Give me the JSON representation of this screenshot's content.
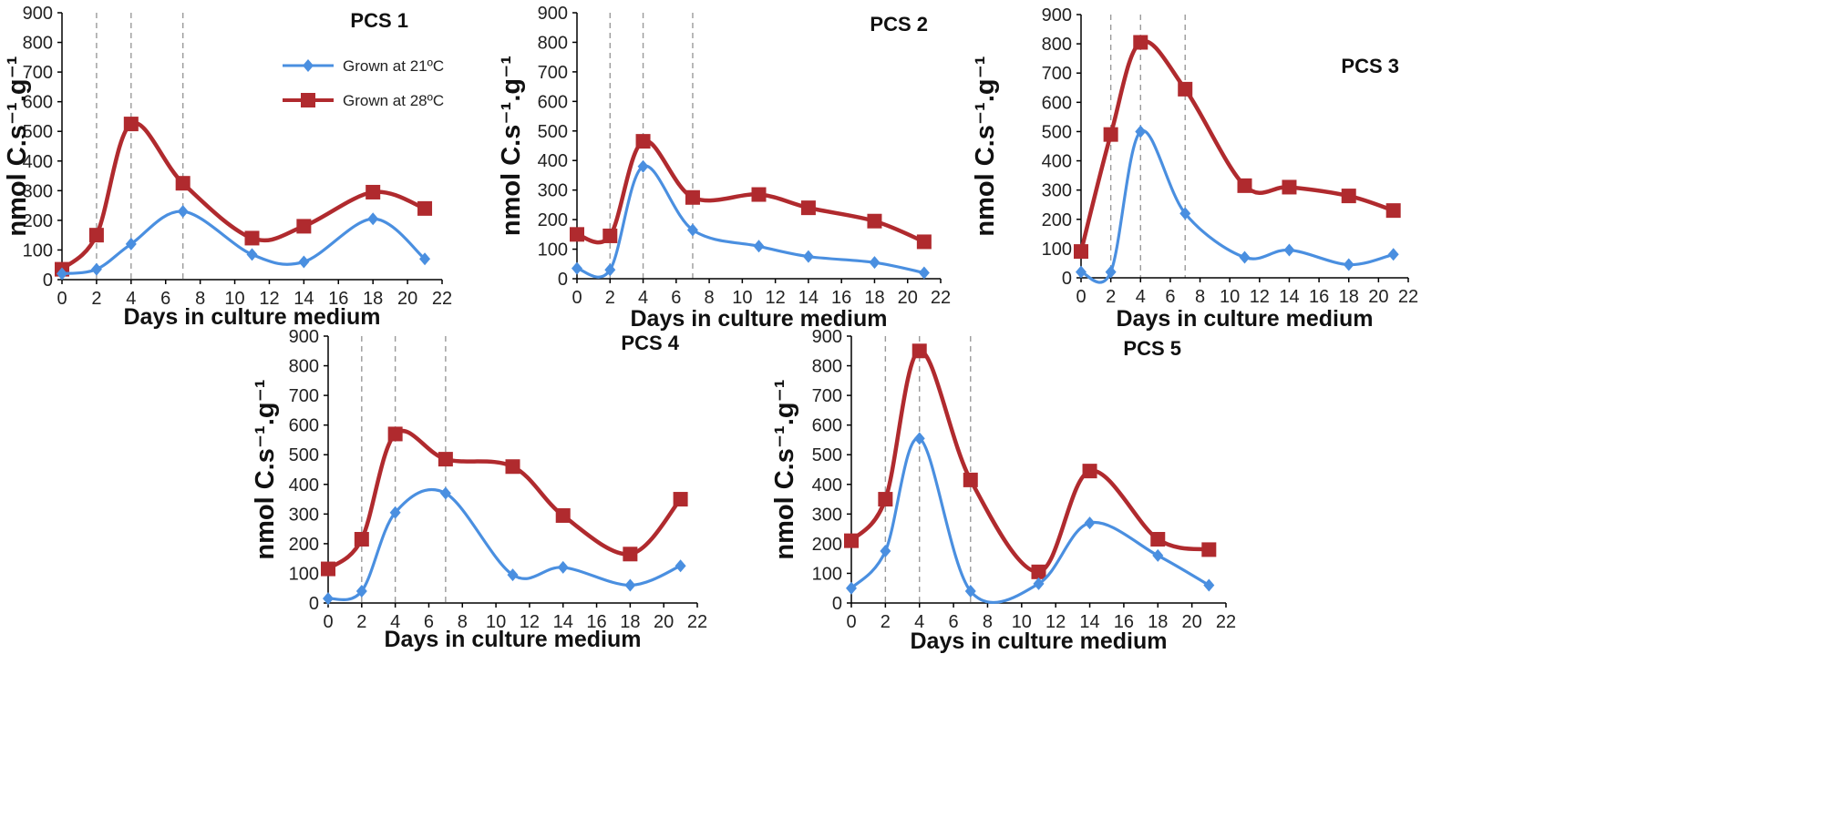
{
  "figure": {
    "colors": {
      "series_21": "#4a8fe0",
      "series_28": "#b02a2e"
    },
    "legend": {
      "entries": [
        "Grown at 21ºC",
        "Grown at 28ºC"
      ]
    }
  },
  "chart_data": [
    {
      "type": "line",
      "title": "PCS 1",
      "xlabel": "Days in culture medium",
      "ylabel": "nmol C.s⁻¹.g⁻¹",
      "xlim": [
        0,
        22
      ],
      "ylim": [
        0,
        900
      ],
      "xticks": [
        0,
        2,
        4,
        6,
        8,
        10,
        12,
        14,
        16,
        18,
        20,
        22
      ],
      "yticks": [
        0,
        100,
        200,
        300,
        400,
        500,
        600,
        700,
        800,
        900
      ],
      "reference_days": [
        2,
        4,
        7
      ],
      "x": [
        0,
        2,
        4,
        7,
        11,
        14,
        18,
        21
      ],
      "series": [
        {
          "name": "Grown at 21ºC",
          "values": [
            20,
            35,
            120,
            230,
            85,
            60,
            205,
            70
          ]
        },
        {
          "name": "Grown at 28ºC",
          "values": [
            35,
            150,
            525,
            325,
            140,
            180,
            295,
            240
          ]
        }
      ]
    },
    {
      "type": "line",
      "title": "PCS 2",
      "xlabel": "Days in culture medium",
      "ylabel": "nmol C.s⁻¹.g⁻¹",
      "xlim": [
        0,
        22
      ],
      "ylim": [
        0,
        900
      ],
      "xticks": [
        0,
        2,
        4,
        6,
        8,
        10,
        12,
        14,
        16,
        18,
        20,
        22
      ],
      "yticks": [
        0,
        100,
        200,
        300,
        400,
        500,
        600,
        700,
        800,
        900
      ],
      "reference_days": [
        2,
        4,
        7
      ],
      "x": [
        0,
        2,
        4,
        7,
        11,
        14,
        18,
        21
      ],
      "series": [
        {
          "name": "Grown at 21ºC",
          "values": [
            35,
            30,
            380,
            165,
            110,
            75,
            55,
            20
          ]
        },
        {
          "name": "Grown at 28ºC",
          "values": [
            150,
            145,
            465,
            275,
            285,
            240,
            195,
            125
          ]
        }
      ]
    },
    {
      "type": "line",
      "title": "PCS 3",
      "xlabel": "Days in culture medium",
      "ylabel": "nmol C.s⁻¹.g⁻¹",
      "xlim": [
        0,
        22
      ],
      "ylim": [
        0,
        900
      ],
      "xticks": [
        0,
        2,
        4,
        6,
        8,
        10,
        12,
        14,
        16,
        18,
        20,
        22
      ],
      "yticks": [
        0,
        100,
        200,
        300,
        400,
        500,
        600,
        700,
        800,
        900
      ],
      "reference_days": [
        2,
        4,
        7
      ],
      "x": [
        0,
        2,
        4,
        7,
        11,
        14,
        18,
        21
      ],
      "series": [
        {
          "name": "Grown at 21ºC",
          "values": [
            20,
            20,
            500,
            220,
            70,
            95,
            45,
            80
          ]
        },
        {
          "name": "Grown at 28ºC",
          "values": [
            90,
            490,
            805,
            645,
            315,
            310,
            280,
            230
          ]
        }
      ]
    },
    {
      "type": "line",
      "title": "PCS 4",
      "xlabel": "Days in culture medium",
      "ylabel": "nmol C.s⁻¹.g⁻¹",
      "xlim": [
        0,
        22
      ],
      "ylim": [
        0,
        900
      ],
      "xticks": [
        0,
        2,
        4,
        6,
        8,
        10,
        12,
        14,
        16,
        18,
        20,
        22
      ],
      "yticks": [
        0,
        100,
        200,
        300,
        400,
        500,
        600,
        700,
        800,
        900
      ],
      "reference_days": [
        2,
        4,
        7
      ],
      "x": [
        0,
        2,
        4,
        7,
        11,
        14,
        18,
        21
      ],
      "series": [
        {
          "name": "Grown at 21ºC",
          "values": [
            15,
            40,
            305,
            370,
            95,
            120,
            60,
            125
          ]
        },
        {
          "name": "Grown at 28ºC",
          "values": [
            115,
            215,
            570,
            485,
            460,
            295,
            165,
            350
          ]
        }
      ]
    },
    {
      "type": "line",
      "title": "PCS 5",
      "xlabel": "Days in culture medium",
      "ylabel": "nmol C.s⁻¹.g⁻¹",
      "xlim": [
        0,
        22
      ],
      "ylim": [
        0,
        900
      ],
      "xticks": [
        0,
        2,
        4,
        6,
        8,
        10,
        12,
        14,
        16,
        18,
        20,
        22
      ],
      "yticks": [
        0,
        100,
        200,
        300,
        400,
        500,
        600,
        700,
        800,
        900
      ],
      "reference_days": [
        2,
        4,
        7
      ],
      "x": [
        0,
        2,
        4,
        7,
        11,
        14,
        18,
        21
      ],
      "series": [
        {
          "name": "Grown at 21ºC",
          "values": [
            50,
            175,
            555,
            40,
            65,
            270,
            160,
            60
          ]
        },
        {
          "name": "Grown at 28ºC",
          "values": [
            210,
            350,
            850,
            415,
            105,
            445,
            215,
            180
          ]
        }
      ]
    }
  ]
}
